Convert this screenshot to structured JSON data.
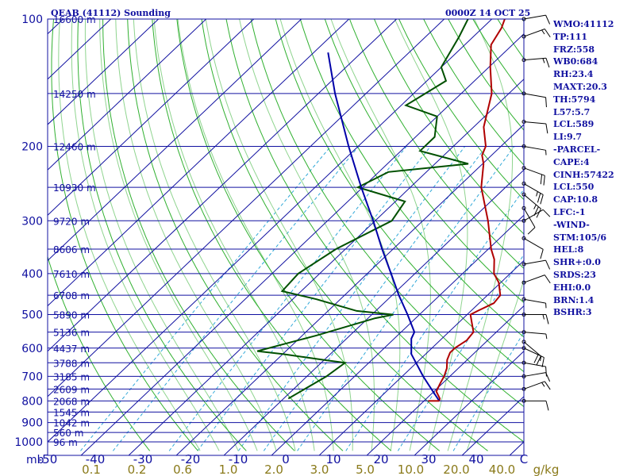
{
  "header": {
    "title": "OEAB (41112) Sounding",
    "valid_time": "0000Z 14 OCT 25"
  },
  "indices": [
    "WMO:41112",
    "TP:111",
    "FRZ:558",
    "WB0:684",
    "RH:23.4",
    "MAXT:20.3",
    "TH:5794",
    "L57:5.7",
    "LCL:589",
    "LI:9.7",
    "-PARCEL-",
    "CAPE:4",
    "CINH:57422",
    "LCL:550",
    "CAP:10.8",
    "LFC:-1",
    "-WIND-",
    "STM:105/6",
    "HEL:8",
    "SHR+:0.0",
    "SRDS:23",
    "EHI:0.0",
    "BRN:1.4",
    "BSHR:3"
  ],
  "colors": {
    "frame": "#1010a0",
    "isobars": "#1010a0",
    "isotherms": "#1010a0",
    "dry_adiabats": "#30b030",
    "moist_adiabats": "#8fd48f",
    "mixing_ratio": "#30a8d8",
    "temperature": "#b00000",
    "dewpoint": "#005000",
    "parcel": "#0000a8",
    "wind_barbs": "#000000",
    "mixing_ratio_labels": "#8a7a1a",
    "axis_labels": "#1010a0"
  },
  "chart_data": {
    "type": "line",
    "title": "OEAB (41112) Sounding",
    "xlabel": "",
    "ylabel": "",
    "y_scale": "log",
    "xlim": [
      -50,
      50
    ],
    "ylim": [
      1000,
      100
    ],
    "temperature_ticks": [
      "-50",
      "-40",
      "-30",
      "-20",
      "-10",
      "0",
      "10",
      "20",
      "30",
      "40",
      "C"
    ],
    "pressure_unit": "mb",
    "pressure_ticks": [
      100,
      200,
      300,
      400,
      500,
      600,
      700,
      800,
      900,
      1000
    ],
    "height_levels": [
      {
        "p": 150,
        "label": "14250 m"
      },
      {
        "p": 200,
        "label": "12460 m"
      },
      {
        "p": 250,
        "label": "10930 m"
      },
      {
        "p": 300,
        "label": "9720 m"
      },
      {
        "p": 350,
        "label": "8606 m"
      },
      {
        "p": 400,
        "label": "7610 m"
      },
      {
        "p": 450,
        "label": "6708 m"
      },
      {
        "p": 500,
        "label": "5890 m"
      },
      {
        "p": 550,
        "label": "5136 m"
      },
      {
        "p": 600,
        "label": "4437 m"
      },
      {
        "p": 650,
        "label": "3788 m"
      },
      {
        "p": 700,
        "label": "3185 m"
      },
      {
        "p": 750,
        "label": "2609 m"
      },
      {
        "p": 800,
        "label": "2068 m"
      },
      {
        "p": 850,
        "label": "1545 m"
      },
      {
        "p": 900,
        "label": "1042 m"
      },
      {
        "p": 950,
        "label": "560 m"
      },
      {
        "p": 1000,
        "label": "96 m"
      },
      {
        "p": 100,
        "label": "16600 m"
      }
    ],
    "mixing_ratio_unit": "g/kg",
    "mixing_ratio_labels": [
      {
        "g": 0.1,
        "label": "0.1"
      },
      {
        "g": 0.2,
        "label": "0.2"
      },
      {
        "g": 0.6,
        "label": "0.6"
      },
      {
        "g": 1.0,
        "label": "1.0"
      },
      {
        "g": 2.0,
        "label": "2.0"
      },
      {
        "g": 3.0,
        "label": "3.0"
      },
      {
        "g": 5.0,
        "label": "5.0"
      },
      {
        "g": 10.0,
        "label": "10.0"
      },
      {
        "g": 20.0,
        "label": "20.0"
      },
      {
        "g": 40.0,
        "label": "40.0"
      }
    ],
    "series": [
      {
        "key": "temperature",
        "values": [
          [
            800,
            23.2
          ],
          [
            790,
            22.8
          ],
          [
            760,
            20.5
          ],
          [
            730,
            19.6
          ],
          [
            700,
            18.8
          ],
          [
            670,
            17.6
          ],
          [
            640,
            15.8
          ],
          [
            615,
            14.8
          ],
          [
            600,
            14.8
          ],
          [
            575,
            15.6
          ],
          [
            550,
            15.2
          ],
          [
            525,
            13.0
          ],
          [
            500,
            10.7
          ],
          [
            490,
            11.4
          ],
          [
            470,
            13.1
          ],
          [
            450,
            12.7
          ],
          [
            420,
            9.6
          ],
          [
            400,
            6.6
          ],
          [
            370,
            3.5
          ],
          [
            350,
            0.6
          ],
          [
            300,
            -6.3
          ],
          [
            250,
            -15.1
          ],
          [
            220,
            -19.8
          ],
          [
            210,
            -22.0
          ],
          [
            200,
            -23.2
          ],
          [
            180,
            -27.9
          ],
          [
            150,
            -33.6
          ],
          [
            130,
            -39.7
          ],
          [
            115,
            -44.5
          ],
          [
            105,
            -46.0
          ],
          [
            100,
            -47.3
          ]
        ]
      },
      {
        "key": "dewpoint",
        "values": [
          [
            790,
            -9.0
          ],
          [
            700,
            -5.9
          ],
          [
            650,
            -5.0
          ],
          [
            640,
            -10.0
          ],
          [
            620,
            -20.0
          ],
          [
            610,
            -26.0
          ],
          [
            560,
            -17.0
          ],
          [
            510,
            -8.5
          ],
          [
            500,
            -5.5
          ],
          [
            490,
            -14.0
          ],
          [
            460,
            -25.0
          ],
          [
            440,
            -34.0
          ],
          [
            400,
            -34.5
          ],
          [
            350,
            -32.0
          ],
          [
            300,
            -26.5
          ],
          [
            270,
            -28.0
          ],
          [
            250,
            -41.0
          ],
          [
            230,
            -38.0
          ],
          [
            220,
            -23.0
          ],
          [
            205,
            -36.0
          ],
          [
            190,
            -36.0
          ],
          [
            170,
            -40.0
          ],
          [
            160,
            -49.0
          ],
          [
            140,
            -46.0
          ],
          [
            130,
            -50.0
          ],
          [
            110,
            -53.0
          ],
          [
            100,
            -55.0
          ]
        ]
      },
      {
        "key": "parcel",
        "values": [
          [
            800,
            23.2
          ],
          [
            760,
            19.8
          ],
          [
            700,
            14.4
          ],
          [
            650,
            9.9
          ],
          [
            620,
            7.0
          ],
          [
            570,
            3.6
          ],
          [
            550,
            2.8
          ],
          [
            500,
            -2.5
          ],
          [
            450,
            -8.6
          ],
          [
            400,
            -15.0
          ],
          [
            350,
            -22.3
          ],
          [
            300,
            -30.4
          ],
          [
            250,
            -40.3
          ],
          [
            200,
            -52.0
          ],
          [
            150,
            -66.5
          ],
          [
            120,
            -77.0
          ]
        ]
      }
    ],
    "wind_barbs": [
      {
        "p": 100,
        "dir": 80,
        "kt": 10
      },
      {
        "p": 110,
        "dir": 70,
        "kt": 15
      },
      {
        "p": 125,
        "dir": 85,
        "kt": 15
      },
      {
        "p": 150,
        "dir": 100,
        "kt": 10
      },
      {
        "p": 175,
        "dir": 95,
        "kt": 10
      },
      {
        "p": 200,
        "dir": 100,
        "kt": 5
      },
      {
        "p": 225,
        "dir": 110,
        "kt": 20
      },
      {
        "p": 245,
        "dir": 120,
        "kt": 25
      },
      {
        "p": 260,
        "dir": 130,
        "kt": 25
      },
      {
        "p": 280,
        "dir": 150,
        "kt": 10
      },
      {
        "p": 300,
        "dir": 60,
        "kt": 10
      },
      {
        "p": 330,
        "dir": 120,
        "kt": 10
      },
      {
        "p": 380,
        "dir": 80,
        "kt": 10
      },
      {
        "p": 420,
        "dir": 70,
        "kt": 10
      },
      {
        "p": 460,
        "dir": 100,
        "kt": 5
      },
      {
        "p": 500,
        "dir": 90,
        "kt": 15
      },
      {
        "p": 550,
        "dir": 95,
        "kt": 5
      },
      {
        "p": 580,
        "dir": 130,
        "kt": 20
      },
      {
        "p": 600,
        "dir": 115,
        "kt": 15
      },
      {
        "p": 650,
        "dir": 100,
        "kt": 10
      },
      {
        "p": 700,
        "dir": 80,
        "kt": 10
      },
      {
        "p": 750,
        "dir": 70,
        "kt": 15
      },
      {
        "p": 800,
        "dir": 90,
        "kt": 10
      }
    ]
  }
}
